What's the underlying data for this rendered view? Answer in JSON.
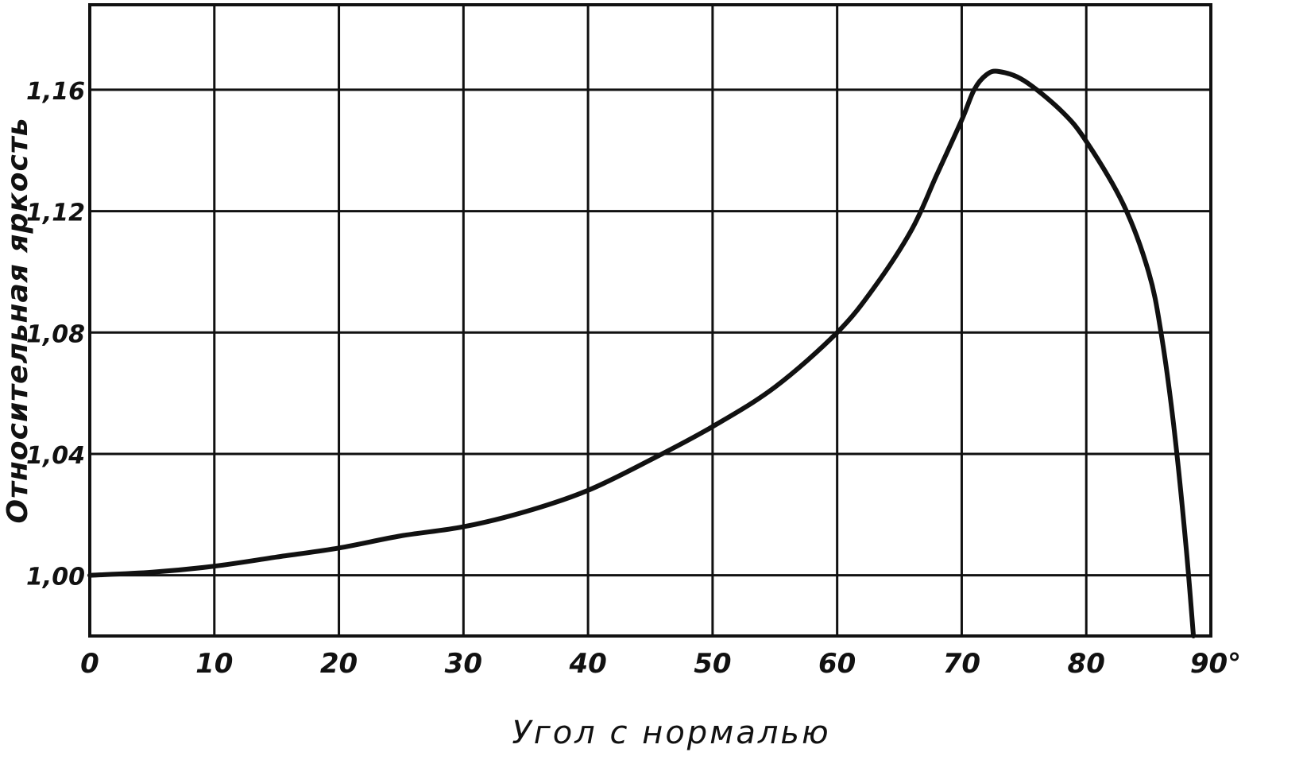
{
  "chart_data": {
    "type": "line",
    "title": "",
    "xlabel": "Угол с нормалью",
    "ylabel": "Относительная яркость",
    "xlim": [
      0,
      90
    ],
    "ylim": [
      0.98,
      1.188
    ],
    "grid": true,
    "legend": "none",
    "x_ticks": [
      0,
      10,
      20,
      30,
      40,
      50,
      60,
      70,
      80,
      90
    ],
    "x_tick_labels": [
      "0",
      "10",
      "20",
      "30",
      "40",
      "50",
      "60",
      "70",
      "80",
      "90°"
    ],
    "y_ticks": [
      1.0,
      1.04,
      1.08,
      1.12,
      1.16
    ],
    "y_tick_labels": [
      "1,00",
      "1,04",
      "1,08",
      "1,12",
      "1,16"
    ],
    "colors": {
      "line": "#111111",
      "grid": "#111111",
      "background": "#ffffff"
    },
    "series": [
      {
        "x": [
          0,
          5,
          10,
          15,
          20,
          25,
          30,
          35,
          40,
          45,
          50,
          55,
          60,
          63,
          66,
          68,
          70,
          71,
          72,
          73,
          75,
          78,
          80,
          83,
          85,
          86,
          87,
          88,
          88.6
        ],
        "y": [
          1.0,
          1.001,
          1.003,
          1.006,
          1.009,
          1.013,
          1.016,
          1.021,
          1.028,
          1.038,
          1.049,
          1.062,
          1.08,
          1.095,
          1.114,
          1.132,
          1.15,
          1.16,
          1.165,
          1.166,
          1.163,
          1.153,
          1.143,
          1.122,
          1.1,
          1.08,
          1.05,
          1.01,
          0.98
        ]
      }
    ]
  }
}
